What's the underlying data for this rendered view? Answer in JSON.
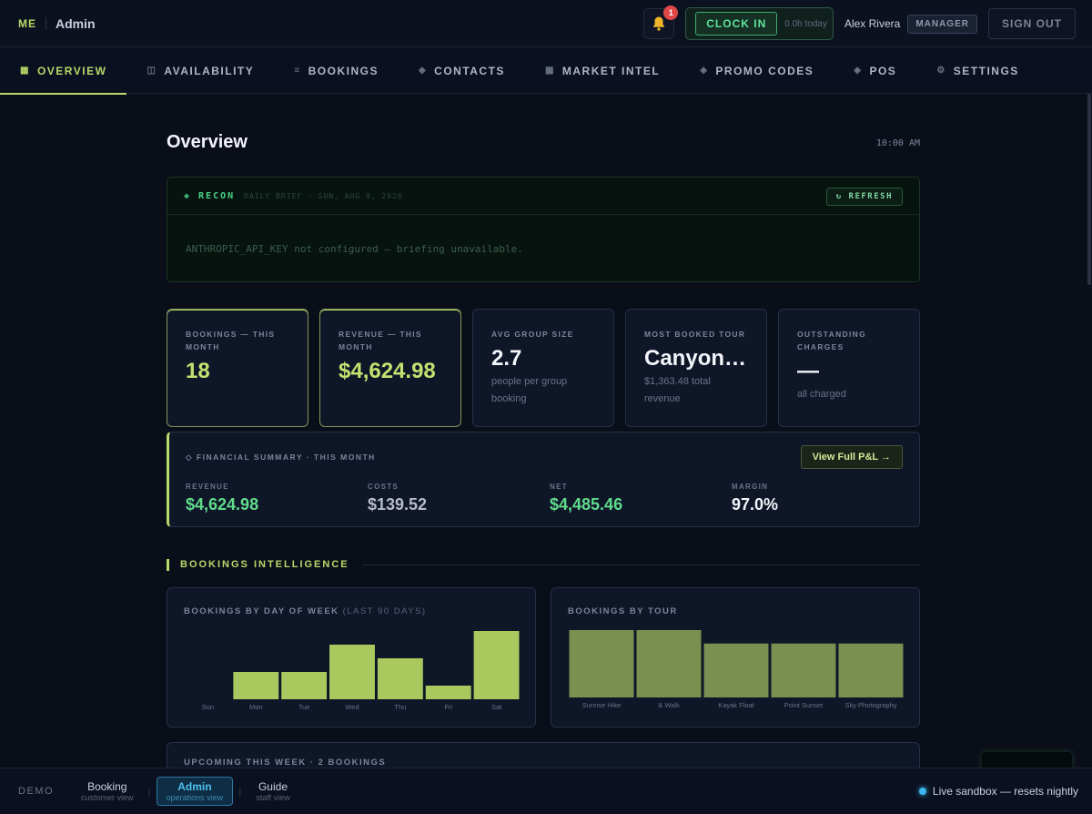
{
  "brand": {
    "logo": "ME",
    "name": "Admin"
  },
  "topbar": {
    "notification_count": "1",
    "clock_in_label": "CLOCK IN",
    "hours_today": "0.0h today",
    "user_name": "Alex Rivera",
    "role": "MANAGER",
    "sign_out_label": "SIGN OUT"
  },
  "nav": {
    "tabs": [
      {
        "label": "OVERVIEW",
        "icon": "grid-icon",
        "glyph": "▦",
        "active": true
      },
      {
        "label": "AVAILABILITY",
        "icon": "calendar-icon",
        "glyph": "◫"
      },
      {
        "label": "BOOKINGS",
        "icon": "list-icon",
        "glyph": "≡"
      },
      {
        "label": "CONTACTS",
        "icon": "diamond-icon",
        "glyph": "◈"
      },
      {
        "label": "MARKET INTEL",
        "icon": "square-icon",
        "glyph": "▩"
      },
      {
        "label": "PROMO CODES",
        "icon": "tag-icon",
        "glyph": "◈"
      },
      {
        "label": "POS",
        "icon": "diamond-icon",
        "glyph": "◈"
      },
      {
        "label": "SETTINGS",
        "icon": "gear-icon",
        "glyph": "⚙"
      }
    ]
  },
  "page": {
    "title": "Overview",
    "time": "10:00 AM"
  },
  "recon": {
    "title": "◈ RECON",
    "subtitle": "DAILY BRIEF · SUN, AUG 9, 2026",
    "refresh_label": "↻ REFRESH",
    "message": "ANTHROPIC_API_KEY not configured — briefing unavailable."
  },
  "kpis": [
    {
      "label": "BOOKINGS — THIS MONTH",
      "value": "18",
      "sub": "",
      "highlight": true
    },
    {
      "label": "REVENUE — THIS MONTH",
      "value": "$4,624.98",
      "sub": "",
      "highlight": true
    },
    {
      "label": "AVG GROUP SIZE",
      "value": "2.7",
      "sub": "people per group booking"
    },
    {
      "label": "MOST BOOKED TOUR",
      "value": "Canyonla...",
      "sub": "$1,363.48 total revenue"
    },
    {
      "label": "OUTSTANDING CHARGES",
      "value": "—",
      "sub": "all charged"
    }
  ],
  "financial": {
    "title": "◇ FINANCIAL SUMMARY · THIS MONTH",
    "button_label": "View Full P&L →",
    "columns": [
      {
        "label": "REVENUE",
        "value": "$4,624.98",
        "color": "#5fdc8c"
      },
      {
        "label": "COSTS",
        "value": "$139.52",
        "color": "#b6bccb"
      },
      {
        "label": "NET",
        "value": "$4,485.46",
        "color": "#5fdc8c"
      },
      {
        "label": "MARGIN",
        "value": "97.0%",
        "color": "#f3f5fa"
      }
    ]
  },
  "section": {
    "title": "BOOKINGS INTELLIGENCE"
  },
  "upcoming": {
    "title": "UPCOMING THIS WEEK · 2 BOOKINGS"
  },
  "chart_data": [
    {
      "type": "bar",
      "title": "BOOKINGS BY DAY OF WEEK",
      "subtitle": "(LAST 90 DAYS)",
      "categories": [
        "Sun",
        "Mon",
        "Tue",
        "Wed",
        "Thu",
        "Fri",
        "Sat"
      ],
      "values": [
        0,
        2,
        2,
        4,
        3,
        1,
        5
      ],
      "ylim": [
        0,
        5
      ],
      "color": "#a9c95e"
    },
    {
      "type": "bar",
      "title": "BOOKINGS BY TOUR",
      "categories": [
        "Sunrise Hike",
        "& Walk",
        "Kayak Float",
        "Point Sunset",
        "Sky Photography"
      ],
      "values": [
        5,
        5,
        4,
        4,
        4
      ],
      "ylim": [
        0,
        5
      ],
      "color": "#7a8f50"
    }
  ],
  "footer": {
    "demo_label": "DEMO",
    "buttons": [
      {
        "title": "Booking",
        "sub": "customer view"
      },
      {
        "title": "Admin",
        "sub": "operations view",
        "active": true
      },
      {
        "title": "Guide",
        "sub": "staff view"
      }
    ],
    "sandbox_text": "Live sandbox — resets nightly"
  },
  "colors": {
    "accent": "#b8d96a",
    "recon_green": "#4ad48a",
    "sandbox_blue": "#3bb6f0"
  }
}
